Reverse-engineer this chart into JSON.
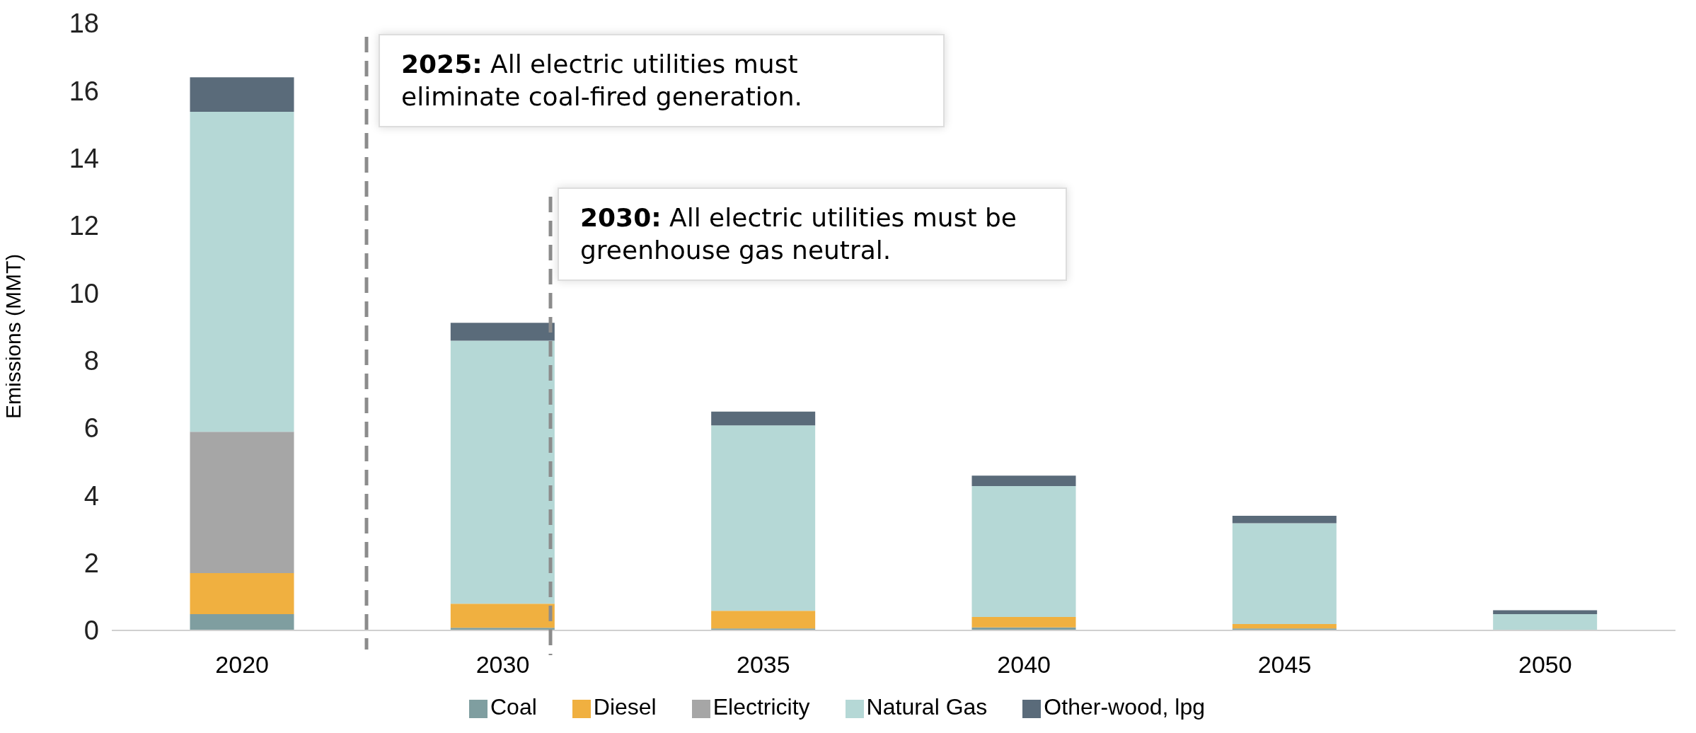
{
  "chart_data": {
    "type": "bar",
    "stacked": true,
    "ylabel": "Emissions (MMT)",
    "categories": [
      "2020",
      "2030",
      "2035",
      "2040",
      "2045",
      "2050"
    ],
    "series": [
      {
        "name": "Coal",
        "color": "#7f9ea0",
        "values": [
          0.48,
          0.08,
          0.06,
          0.09,
          0.06,
          0
        ]
      },
      {
        "name": "Diesel",
        "color": "#f0b040",
        "values": [
          1.22,
          0.71,
          0.52,
          0.31,
          0.13,
          0
        ]
      },
      {
        "name": "Electricity",
        "color": "#a6a6a6",
        "values": [
          4.19,
          0,
          0,
          0,
          0,
          0
        ]
      },
      {
        "name": "Natural Gas",
        "color": "#b5d8d6",
        "values": [
          9.49,
          7.8,
          5.5,
          3.88,
          2.99,
          0.48
        ]
      },
      {
        "name": "Other-wood, lpg",
        "color": "#5a6b7a",
        "values": [
          1.02,
          0.53,
          0.41,
          0.31,
          0.22,
          0.12
        ]
      }
    ],
    "ylim": [
      0,
      18
    ],
    "yticks": [
      0,
      2,
      4,
      6,
      8,
      10,
      12,
      14,
      16,
      18
    ],
    "grid": false,
    "legend": "bottom",
    "annotations": [
      "2025: All electric utilities must eliminate coal-fired generation.",
      "2030: All electric utilities must be greenhouse gas neutral."
    ]
  }
}
